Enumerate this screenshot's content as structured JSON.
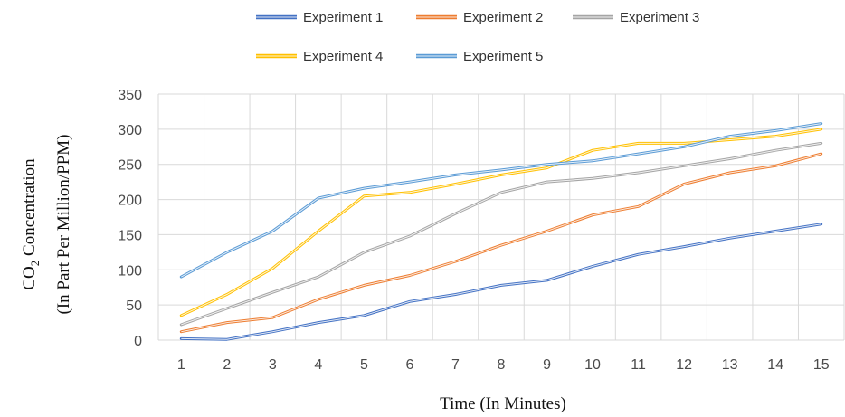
{
  "chart_data": {
    "type": "line",
    "xlabel": "Time (In Minutes)",
    "ylabel_line1_pre": "CO",
    "ylabel_line1_sub": "2",
    "ylabel_line1_post": " Concentration",
    "ylabel_line2": "(In Part Per Million/PPM)",
    "ylim": [
      0,
      350
    ],
    "yticks": [
      "0",
      "50",
      "100",
      "150",
      "200",
      "250",
      "300",
      "350"
    ],
    "x": [
      "1",
      "2",
      "3",
      "4",
      "5",
      "6",
      "7",
      "8",
      "9",
      "10",
      "11",
      "12",
      "13",
      "14",
      "15"
    ],
    "grid": true,
    "legend_position": "top",
    "series": [
      {
        "name": "Experiment 1",
        "color": "#4472C4",
        "values": [
          2,
          1,
          12,
          25,
          35,
          55,
          65,
          78,
          85,
          105,
          122,
          133,
          145,
          155,
          165
        ]
      },
      {
        "name": "Experiment 2",
        "color": "#ED7D31",
        "values": [
          12,
          25,
          32,
          58,
          78,
          92,
          112,
          135,
          155,
          178,
          190,
          222,
          238,
          248,
          265
        ]
      },
      {
        "name": "Experiment 3",
        "color": "#A5A5A5",
        "values": [
          22,
          45,
          68,
          90,
          125,
          148,
          180,
          210,
          225,
          230,
          238,
          248,
          258,
          270,
          280
        ]
      },
      {
        "name": "Experiment 4",
        "color": "#FFC000",
        "values": [
          35,
          65,
          102,
          155,
          205,
          210,
          222,
          235,
          245,
          270,
          280,
          280,
          285,
          290,
          300
        ]
      },
      {
        "name": "Experiment 5",
        "color": "#5B9BD5",
        "values": [
          90,
          125,
          155,
          202,
          216,
          225,
          235,
          242,
          250,
          255,
          265,
          275,
          290,
          298,
          308
        ]
      }
    ]
  }
}
